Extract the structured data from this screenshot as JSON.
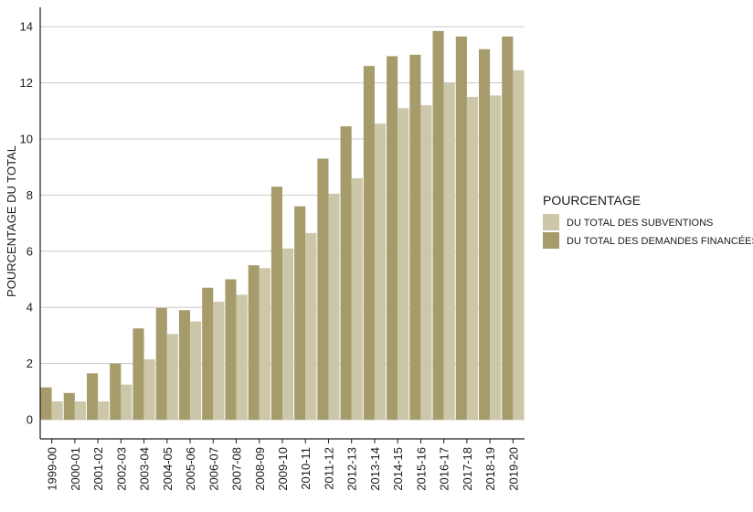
{
  "chart_data": {
    "type": "bar",
    "title": "",
    "xlabel": "",
    "ylabel": "POURCENTAGE DU TOTAL",
    "ylim": [
      0,
      14.2
    ],
    "yticks": [
      0,
      2,
      4,
      6,
      8,
      10,
      12,
      14
    ],
    "grid": "horizontal",
    "legend": {
      "title": "POURCENTAGE",
      "placement": "right"
    },
    "categories": [
      "1999-00",
      "2000-01",
      "2001-02",
      "2002-03",
      "2003-04",
      "2004-05",
      "2005-06",
      "2006-07",
      "2007-08",
      "2008-09",
      "2009-10",
      "2010-11",
      "2011-12",
      "2012-13",
      "2013-14",
      "2014-15",
      "2015-16",
      "2016-17",
      "2017-18",
      "2018-19",
      "2019-20"
    ],
    "series": [
      {
        "name": "DU TOTAL DES DEMANDES FINANCÉES",
        "color": "#a69b6a",
        "values": [
          1.15,
          0.95,
          1.65,
          2.0,
          3.25,
          3.98,
          3.9,
          4.7,
          5.0,
          5.5,
          8.3,
          7.6,
          9.3,
          10.45,
          12.6,
          12.95,
          13.0,
          13.85,
          13.65,
          13.2,
          13.65
        ]
      },
      {
        "name": "DU TOTAL DES SUBVENTIONS",
        "color": "#cdc7aa",
        "values": [
          0.65,
          0.65,
          0.65,
          1.25,
          2.15,
          3.05,
          3.5,
          4.2,
          4.45,
          5.4,
          6.1,
          6.65,
          8.05,
          8.6,
          10.55,
          11.1,
          11.2,
          12.0,
          11.5,
          11.55,
          12.45
        ]
      }
    ],
    "legend_order": [
      1,
      0
    ]
  }
}
